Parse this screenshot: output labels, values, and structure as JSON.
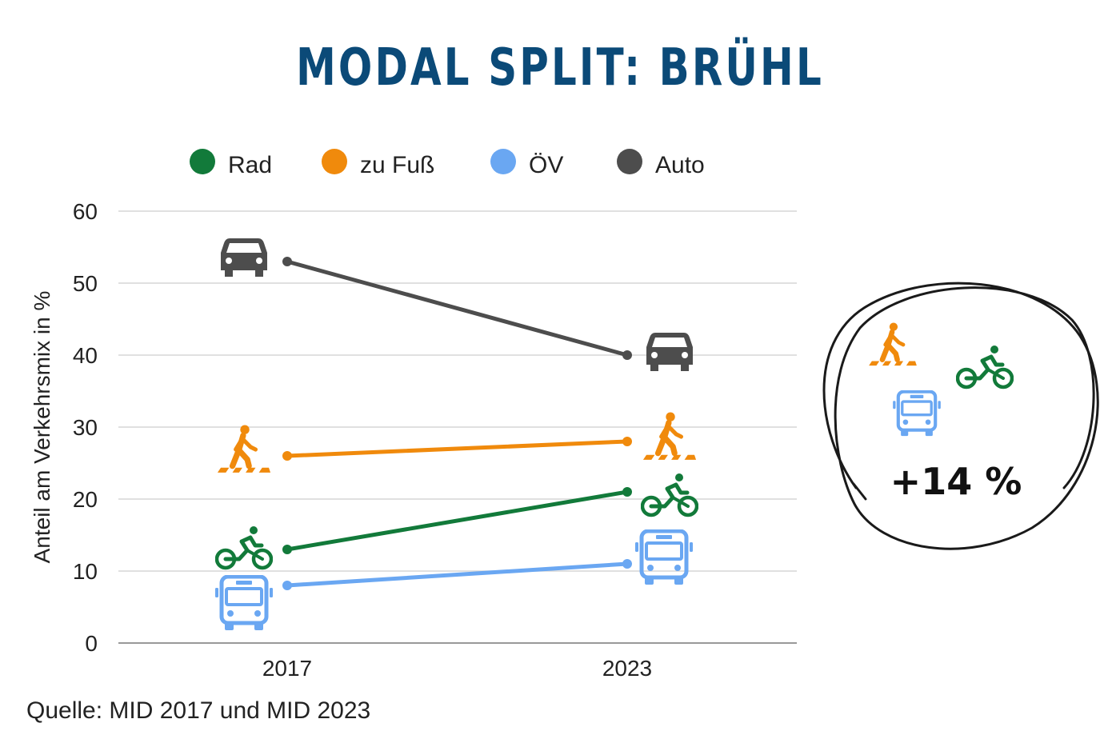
{
  "title": "MODAL SPLIT: BRÜHL",
  "source": "Quelle: MID 2017 und MID 2023",
  "annotation": "+14 %",
  "chart_data": {
    "type": "line",
    "x": [
      "2017",
      "2023"
    ],
    "series": [
      {
        "name": "Rad",
        "color": "#127a3a",
        "icon": "bicycle-icon",
        "values": [
          13,
          21
        ]
      },
      {
        "name": "zu Fuß",
        "color": "#f08a0c",
        "icon": "pedestrian-icon",
        "values": [
          26,
          28
        ]
      },
      {
        "name": "ÖV",
        "color": "#6aa7f2",
        "icon": "bus-icon",
        "values": [
          8,
          11
        ]
      },
      {
        "name": "Auto",
        "color": "#4d4d4d",
        "icon": "car-icon",
        "values": [
          53,
          40
        ]
      }
    ],
    "ylabel": "Anteil am Verkehrsmix in %",
    "xlabel": "",
    "ylim": [
      0,
      60
    ],
    "yticks": [
      0,
      10,
      20,
      30,
      40,
      50,
      60
    ],
    "grid": true,
    "legend_position": "top"
  }
}
